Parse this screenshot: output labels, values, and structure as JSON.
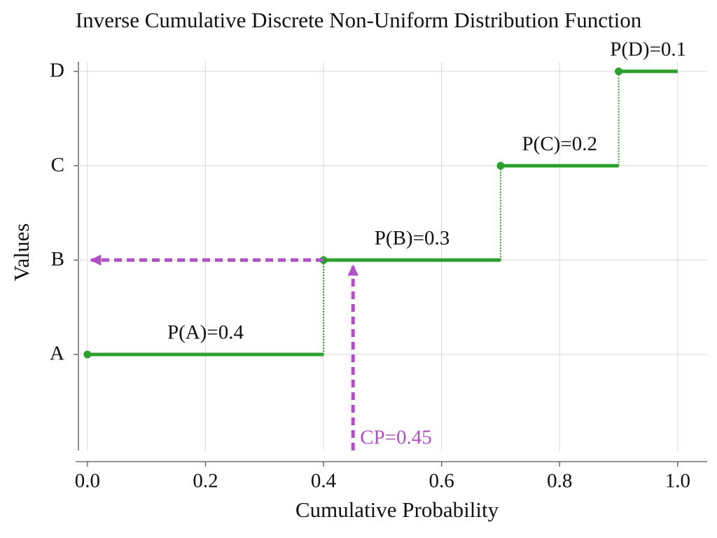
{
  "chart_data": {
    "type": "step",
    "title": "Inverse Cumulative Discrete Non-Uniform Distribution Function",
    "x_label": "Cumulative Probability",
    "y_label": "Values",
    "categories": [
      "A",
      "B",
      "C",
      "D"
    ],
    "x_start": [
      0,
      0.4,
      0.7,
      0.9
    ],
    "x_end": [
      0.4,
      0.7,
      0.9,
      1
    ],
    "annotations": [
      "P(A)=0.4",
      "P(B)=0.3",
      "P(C)=0.2",
      "P(D)=0.1"
    ],
    "color": "#2ca02c",
    "cp": {
      "value": 0.45,
      "label": "CP=0.45",
      "color": "#b04fc8"
    },
    "xlim": [
      -0.02,
      1.05
    ],
    "xticks": [
      {
        "value": 0,
        "label": "0.0"
      },
      0.2,
      0.4,
      0.6,
      0.8,
      {
        "value": 1,
        "label": "1.0"
      }
    ],
    "grid": true
  }
}
